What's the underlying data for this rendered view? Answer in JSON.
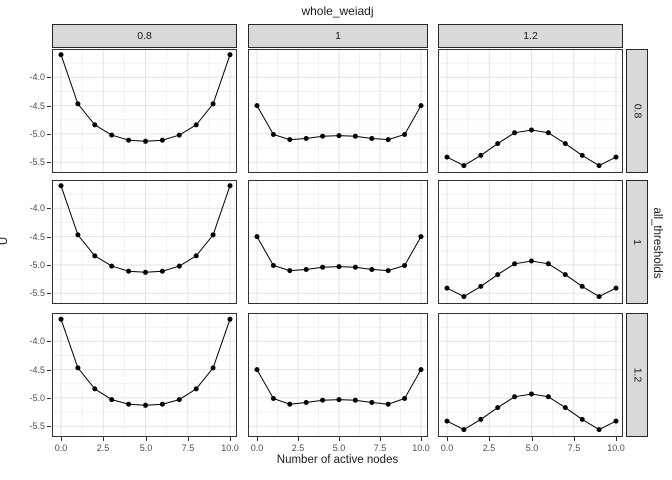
{
  "title": "whole_weiadj",
  "y_axis": {
    "title": "U",
    "tick_labels": [
      "-4.0",
      "-4.5",
      "-5.0",
      "-5.5"
    ],
    "tick_values": [
      -4.0,
      -4.5,
      -5.0,
      -5.5
    ]
  },
  "x_axis": {
    "title": "Number of active nodes",
    "tick_labels": [
      "0.0",
      "2.5",
      "5.0",
      "7.5",
      "10.0"
    ],
    "tick_values": [
      0,
      2.5,
      5,
      7.5,
      10
    ]
  },
  "right_axis_title": "all_thresholds",
  "colors": {
    "strip_fill": "#d9d9d9",
    "strip_border": "#262626",
    "panel_border": "#333333",
    "grid_major": "#e3e3e3",
    "grid_minor": "#f1f1f1",
    "line": "#000000",
    "point": "#000000",
    "tick_label": "#4d4d4d"
  },
  "chart_data": {
    "type": "line",
    "title": "whole_weiadj",
    "xlabel": "Number of active nodes",
    "ylabel": "U",
    "right_label": "all_thresholds",
    "facet": {
      "col_variable": "whole_weiadj",
      "row_variable": "all_thresholds",
      "cols": [
        "0.8",
        "1",
        "1.2"
      ],
      "rows": [
        "0.8",
        "1",
        "1.2"
      ]
    },
    "x": [
      0,
      1,
      2,
      3,
      4,
      5,
      6,
      7,
      8,
      9,
      10
    ],
    "panels": [
      {
        "row": "0.8",
        "col": "0.8",
        "values": [
          -3.6,
          -4.47,
          -4.84,
          -5.02,
          -5.11,
          -5.13,
          -5.11,
          -5.02,
          -4.84,
          -4.47,
          -3.6
        ]
      },
      {
        "row": "0.8",
        "col": "1",
        "values": [
          -4.5,
          -5.01,
          -5.1,
          -5.08,
          -5.04,
          -5.03,
          -5.04,
          -5.08,
          -5.1,
          -5.01,
          -4.5
        ]
      },
      {
        "row": "0.8",
        "col": "1.2",
        "values": [
          -5.41,
          -5.56,
          -5.38,
          -5.17,
          -4.98,
          -4.93,
          -4.98,
          -5.17,
          -5.38,
          -5.56,
          -5.41
        ]
      },
      {
        "row": "1",
        "col": "0.8",
        "values": [
          -3.6,
          -4.47,
          -4.84,
          -5.02,
          -5.11,
          -5.13,
          -5.11,
          -5.02,
          -4.84,
          -4.47,
          -3.6
        ]
      },
      {
        "row": "1",
        "col": "1",
        "values": [
          -4.5,
          -5.01,
          -5.1,
          -5.08,
          -5.04,
          -5.03,
          -5.04,
          -5.08,
          -5.1,
          -5.01,
          -4.5
        ]
      },
      {
        "row": "1",
        "col": "1.2",
        "values": [
          -5.41,
          -5.56,
          -5.38,
          -5.17,
          -4.98,
          -4.93,
          -4.98,
          -5.17,
          -5.38,
          -5.56,
          -5.41
        ]
      },
      {
        "row": "1.2",
        "col": "0.8",
        "values": [
          -3.61,
          -4.47,
          -4.84,
          -5.03,
          -5.11,
          -5.13,
          -5.11,
          -5.03,
          -4.84,
          -4.47,
          -3.61
        ]
      },
      {
        "row": "1.2",
        "col": "1",
        "values": [
          -4.5,
          -5.01,
          -5.11,
          -5.08,
          -5.04,
          -5.03,
          -5.04,
          -5.08,
          -5.11,
          -5.01,
          -4.5
        ]
      },
      {
        "row": "1.2",
        "col": "1.2",
        "values": [
          -5.41,
          -5.56,
          -5.38,
          -5.17,
          -4.98,
          -4.93,
          -4.98,
          -5.17,
          -5.38,
          -5.56,
          -5.41
        ]
      }
    ],
    "xlim": [
      0,
      10
    ],
    "ylim": [
      -5.69,
      -3.5
    ],
    "x_ticks": [
      0,
      2.5,
      5,
      7.5,
      10
    ],
    "y_ticks": [
      -4.0,
      -4.5,
      -5.0,
      -5.5
    ],
    "x_minor_ticks": [
      1.25,
      3.75,
      6.25,
      8.75
    ],
    "y_minor_ticks": [
      -3.75,
      -4.25,
      -4.75,
      -5.25
    ],
    "grid": "major+minor",
    "legend": "none"
  }
}
